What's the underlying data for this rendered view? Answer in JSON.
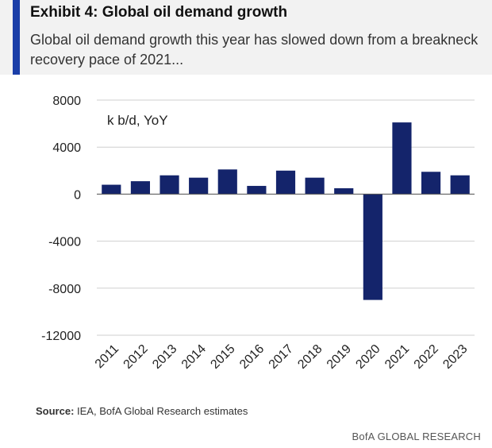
{
  "header": {
    "title": "Exhibit 4: Global oil demand growth",
    "subtitle": "Global oil demand growth this year has slowed down from a breakneck recovery pace of 2021..."
  },
  "footer": {
    "source_label": "Source:",
    "source_text": " IEA, BofA Global Research estimates",
    "brand": "BofA GLOBAL RESEARCH"
  },
  "colors": {
    "accent": "#1a3ea8",
    "bar": "#14246b",
    "grid": "#cfcfcf"
  },
  "chart_data": {
    "type": "bar",
    "title": "",
    "xlabel": "",
    "ylabel": "k b/d, YoY",
    "categories": [
      "2011",
      "2012",
      "2013",
      "2014",
      "2015",
      "2016",
      "2017",
      "2018",
      "2019",
      "2020",
      "2021",
      "2022",
      "2023"
    ],
    "values": [
      800,
      1100,
      1600,
      1400,
      2100,
      700,
      2000,
      1400,
      500,
      -9000,
      6100,
      1900,
      1600
    ],
    "ylim": [
      -12000,
      8000
    ],
    "yticks": [
      8000,
      4000,
      0,
      -4000,
      -8000,
      -12000
    ],
    "grid": true,
    "legend": "none"
  }
}
